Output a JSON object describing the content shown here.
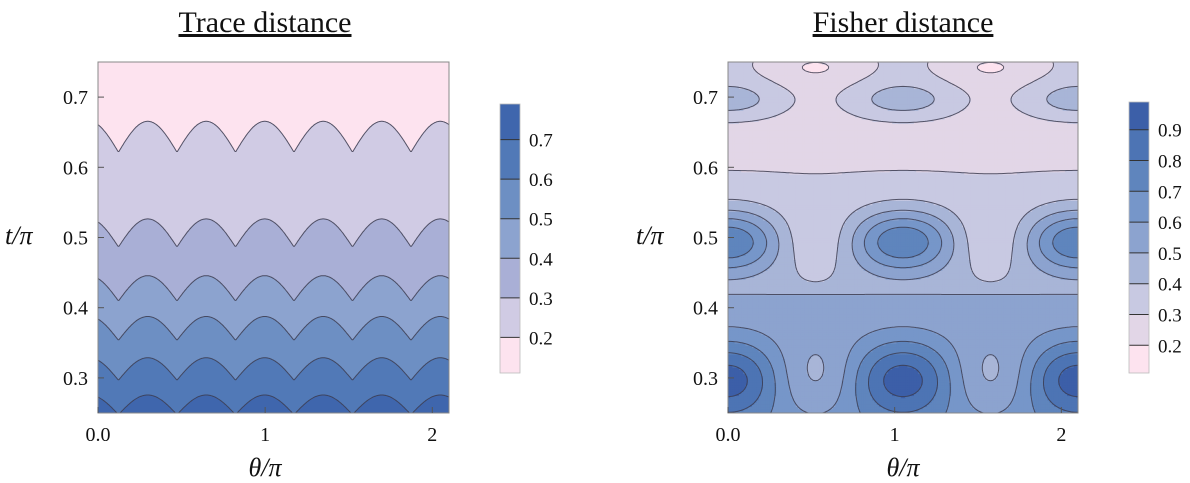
{
  "chart_data": [
    {
      "type": "heatmap",
      "title": "Trace distance",
      "xlabel": "θ/π",
      "ylabel": "t/π",
      "xlim": [
        0.0,
        2.1
      ],
      "ylim": [
        0.25,
        0.75
      ],
      "x_ticks": [
        "0.0",
        "1",
        "2"
      ],
      "y_ticks": [
        "0.3",
        "0.4",
        "0.5",
        "0.6",
        "0.7"
      ],
      "legend_ticks": [
        "0.2",
        "0.3",
        "0.4",
        "0.5",
        "0.6",
        "0.7"
      ],
      "contour_levels": [
        0.2,
        0.3,
        0.4,
        0.5,
        0.6,
        0.7
      ],
      "legend_position": "right",
      "grid": false,
      "boundaries_t": [
        0.6435,
        0.5065,
        0.4276,
        0.3705,
        0.3127,
        0.2617
      ],
      "band_colors": [
        "#fde3ef",
        "#d0cbe4",
        "#a9afd6",
        "#8ca3cf",
        "#6d8fc3",
        "#5179b7",
        "#3f66ad"
      ]
    },
    {
      "type": "heatmap",
      "title": "Fisher distance",
      "xlabel": "θ/π",
      "ylabel": "t/π",
      "xlim": [
        0.0,
        2.1
      ],
      "ylim": [
        0.25,
        0.75
      ],
      "x_ticks": [
        "0.0",
        "1",
        "2"
      ],
      "y_ticks": [
        "0.3",
        "0.4",
        "0.5",
        "0.6",
        "0.7"
      ],
      "legend_ticks": [
        "0.2",
        "0.3",
        "0.4",
        "0.5",
        "0.6",
        "0.7",
        "0.8",
        "0.9"
      ],
      "contour_levels": [
        0.2,
        0.3,
        0.4,
        0.5,
        0.6,
        0.7,
        0.8,
        0.9
      ],
      "legend_position": "right",
      "grid": false,
      "band_colors": [
        "#fde3ef",
        "#e2d6e7",
        "#c8c9e2",
        "#a8b5d7",
        "#8ca3cf",
        "#7696c9",
        "#5f85bd",
        "#4d74b4",
        "#3c5fa8"
      ]
    }
  ]
}
